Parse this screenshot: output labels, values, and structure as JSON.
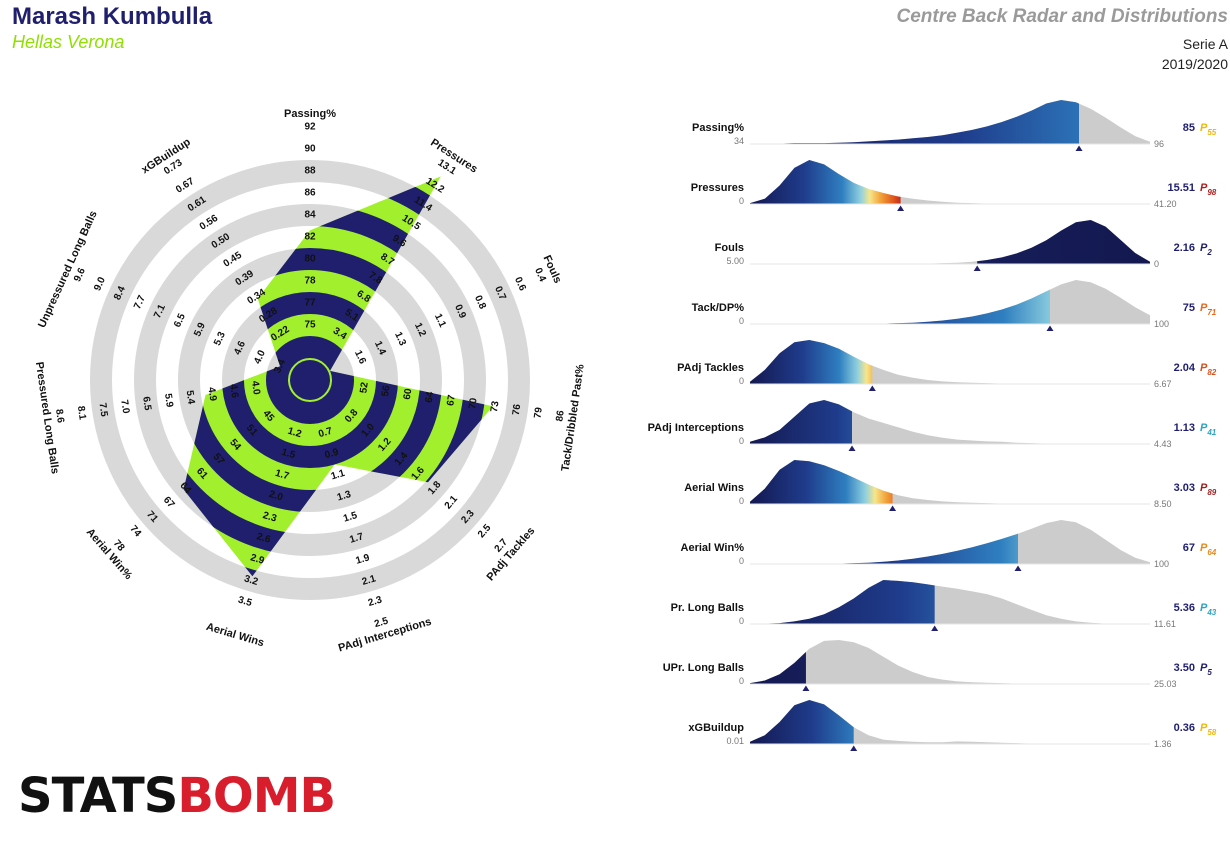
{
  "header": {
    "player": "Marash Kumbulla",
    "team": "Hellas Verona",
    "title": "Centre Back Radar and Distributions",
    "league": "Serie A",
    "season": "2019/2020"
  },
  "logo": {
    "text_a": "STATS",
    "text_b": "BOMB"
  },
  "colors": {
    "radar_fill": "#a2ef2e",
    "radar_band": "#1f1f6e",
    "ring": "#d9d9d9",
    "dist_grey": "#cccccc",
    "marker": "#1f1f6e"
  },
  "chart_data": [
    {
      "type": "radar",
      "axes": [
        {
          "label": "Passing%",
          "ticks": [
            "75",
            "77",
            "78",
            "80",
            "82",
            "84",
            "86",
            "88",
            "90",
            "92"
          ],
          "value": 85,
          "fraction": 0.58
        },
        {
          "label": "Pressures",
          "ticks": [
            "3.4",
            "5.1",
            "6.8",
            "7.8",
            "8.7",
            "9.6",
            "10.5",
            "11.4",
            "12.2",
            "13.1"
          ],
          "value": 15.51,
          "fraction": 1.0
        },
        {
          "label": "Fouls",
          "ticks": [
            "1.6",
            "1.4",
            "1.3",
            "1.2",
            "1.1",
            "0.9",
            "0.8",
            "0.7",
            "0.6",
            "0.4"
          ],
          "value": 2.16,
          "fraction": 0.0
        },
        {
          "label": "Tack/Dribbled Past%",
          "ticks": [
            "52",
            "56",
            "60",
            "64",
            "67",
            "70",
            "73",
            "76",
            "79",
            "86"
          ],
          "value": 75,
          "fraction": 0.74
        },
        {
          "label": "PAdj Tackles",
          "ticks": [
            "0.8",
            "1.0",
            "1.2",
            "1.4",
            "1.6",
            "1.8",
            "2.1",
            "2.3",
            "2.5",
            "2.7"
          ],
          "value": 2.04,
          "fraction": 0.61
        },
        {
          "label": "PAdj Interceptions",
          "ticks": [
            "0.7",
            "0.9",
            "1.1",
            "1.3",
            "1.5",
            "1.7",
            "1.9",
            "2.1",
            "2.3",
            "2.5"
          ],
          "value": 1.13,
          "fraction": 0.3
        },
        {
          "label": "Aerial Wins",
          "ticks": [
            "1.2",
            "1.5",
            "1.7",
            "2.0",
            "2.3",
            "2.6",
            "2.9",
            "3.2",
            "3.5"
          ],
          "value": 3.03,
          "fraction": 0.83
        },
        {
          "label": "Aerial Win%",
          "ticks": [
            "45",
            "51",
            "54",
            "57",
            "61",
            "64",
            "67",
            "71",
            "74",
            "78"
          ],
          "value": 67,
          "fraction": 0.66
        },
        {
          "label": "Pressured Long Balls",
          "ticks": [
            "4.0",
            "4.6",
            "4.9",
            "5.4",
            "5.9",
            "6.5",
            "7.0",
            "7.5",
            "8.1",
            "8.6"
          ],
          "value": 5.36,
          "fraction": 0.38
        },
        {
          "label": "Unpressured Long Balls",
          "ticks": [
            "3.4",
            "4.0",
            "4.6",
            "5.3",
            "5.9",
            "6.5",
            "7.1",
            "7.7",
            "8.4",
            "9.0",
            "9.6"
          ],
          "value": 3.5,
          "fraction": 0.05
        },
        {
          "label": "xGBuildup",
          "ticks": [
            "0.22",
            "0.28",
            "0.34",
            "0.39",
            "0.45",
            "0.50",
            "0.56",
            "0.61",
            "0.67",
            "0.73"
          ],
          "value": 0.36,
          "fraction": 0.34
        }
      ]
    },
    {
      "type": "area",
      "rows": [
        {
          "label": "Passing%",
          "min": "34",
          "max": "96",
          "value": "85",
          "pct": 55,
          "pct_color": "#f2b705",
          "x0": 34,
          "x1": 96,
          "v": 85,
          "rev": false,
          "curve": [
            0.01,
            0.01,
            0.01,
            0.02,
            0.02,
            0.02,
            0.03,
            0.04,
            0.06,
            0.08,
            0.1,
            0.13,
            0.16,
            0.2,
            0.26,
            0.32,
            0.4,
            0.5,
            0.62,
            0.76,
            0.92,
            1.0,
            0.95,
            0.8,
            0.6,
            0.38,
            0.18,
            0.05
          ]
        },
        {
          "label": "Pressures",
          "min": "0",
          "max": "41.20",
          "value": "15.51",
          "pct": 98,
          "pct_color": "#b31b1b",
          "x0": 0,
          "x1": 41.2,
          "v": 15.51,
          "rev": false,
          "curve": [
            0.02,
            0.12,
            0.42,
            0.82,
            1.0,
            0.9,
            0.68,
            0.48,
            0.34,
            0.25,
            0.17,
            0.12,
            0.08,
            0.05,
            0.03,
            0.02,
            0.01,
            0.01,
            0.0,
            0.0,
            0.0,
            0.0,
            0.0,
            0.0,
            0.0,
            0.0,
            0.0,
            0.0
          ]
        },
        {
          "label": "Fouls",
          "min": "5.00",
          "max": "0",
          "value": "2.16",
          "pct": 2,
          "pct_color": "#1f1f6e",
          "x0": 5.0,
          "x1": 0,
          "v": 2.16,
          "rev": true,
          "curve": [
            0.0,
            0.0,
            0.0,
            0.0,
            0.0,
            0.0,
            0.0,
            0.0,
            0.0,
            0.0,
            0.01,
            0.01,
            0.01,
            0.02,
            0.03,
            0.05,
            0.09,
            0.15,
            0.24,
            0.37,
            0.54,
            0.76,
            0.95,
            1.0,
            0.85,
            0.55,
            0.25,
            0.05
          ]
        },
        {
          "label": "Tack/DP%",
          "min": "0",
          "max": "100",
          "value": "75",
          "pct": 71,
          "pct_color": "#e8681a",
          "x0": 0,
          "x1": 100,
          "v": 75,
          "rev": false,
          "curve": [
            0.0,
            0.0,
            0.0,
            0.0,
            0.0,
            0.0,
            0.0,
            0.0,
            0.01,
            0.01,
            0.02,
            0.03,
            0.05,
            0.08,
            0.12,
            0.17,
            0.24,
            0.33,
            0.44,
            0.58,
            0.74,
            0.9,
            1.0,
            0.95,
            0.8,
            0.6,
            0.38,
            0.2
          ]
        },
        {
          "label": "PAdj Tackles",
          "min": "0",
          "max": "6.67",
          "value": "2.04",
          "pct": 82,
          "pct_color": "#d4501c",
          "x0": 0,
          "x1": 6.67,
          "v": 2.04,
          "rev": false,
          "curve": [
            0.05,
            0.32,
            0.7,
            0.95,
            1.0,
            0.93,
            0.8,
            0.62,
            0.45,
            0.32,
            0.21,
            0.14,
            0.09,
            0.06,
            0.04,
            0.03,
            0.02,
            0.01,
            0.01,
            0.01,
            0.0,
            0.0,
            0.0,
            0.0,
            0.0,
            0.0,
            0.0,
            0.0
          ]
        },
        {
          "label": "PAdj Interceptions",
          "min": "0",
          "max": "4.43",
          "value": "1.13",
          "pct": 41,
          "pct_color": "#2aa3c7",
          "x0": 0,
          "x1": 4.43,
          "v": 1.13,
          "rev": false,
          "curve": [
            0.05,
            0.15,
            0.32,
            0.62,
            0.92,
            1.0,
            0.9,
            0.72,
            0.58,
            0.48,
            0.38,
            0.28,
            0.2,
            0.14,
            0.1,
            0.08,
            0.06,
            0.05,
            0.03,
            0.02,
            0.01,
            0.01,
            0.0,
            0.0,
            0.0,
            0.0,
            0.0,
            0.0
          ]
        },
        {
          "label": "Aerial Wins",
          "min": "0",
          "max": "8.50",
          "value": "3.03",
          "pct": 89,
          "pct_color": "#9e1d1d",
          "x0": 0,
          "x1": 8.5,
          "v": 3.03,
          "rev": false,
          "curve": [
            0.05,
            0.35,
            0.78,
            1.0,
            0.97,
            0.88,
            0.75,
            0.6,
            0.44,
            0.3,
            0.2,
            0.13,
            0.09,
            0.06,
            0.04,
            0.03,
            0.02,
            0.01,
            0.01,
            0.0,
            0.0,
            0.0,
            0.0,
            0.0,
            0.0,
            0.0,
            0.0,
            0.0
          ]
        },
        {
          "label": "Aerial Win%",
          "min": "0",
          "max": "100",
          "value": "67",
          "pct": 64,
          "pct_color": "#e8891a",
          "x0": 0,
          "x1": 100,
          "v": 67,
          "rev": false,
          "curve": [
            0.0,
            0.0,
            0.0,
            0.0,
            0.0,
            0.01,
            0.01,
            0.02,
            0.03,
            0.05,
            0.08,
            0.12,
            0.17,
            0.23,
            0.3,
            0.38,
            0.47,
            0.57,
            0.68,
            0.8,
            0.93,
            1.0,
            0.95,
            0.78,
            0.55,
            0.32,
            0.14,
            0.04
          ]
        },
        {
          "label": "Pr. Long Balls",
          "min": "0",
          "max": "11.61",
          "value": "5.36",
          "pct": 43,
          "pct_color": "#2aa3c7",
          "x0": 0,
          "x1": 11.61,
          "v": 5.36,
          "rev": false,
          "curve": [
            0.0,
            0.01,
            0.02,
            0.06,
            0.12,
            0.22,
            0.38,
            0.58,
            0.82,
            1.0,
            0.98,
            0.95,
            0.9,
            0.85,
            0.8,
            0.74,
            0.68,
            0.58,
            0.45,
            0.32,
            0.2,
            0.12,
            0.06,
            0.03,
            0.01,
            0.0,
            0.0,
            0.0
          ]
        },
        {
          "label": "UPr. Long Balls",
          "min": "0",
          "max": "25.03",
          "value": "3.50",
          "pct": 5,
          "pct_color": "#1f1f6e",
          "x0": 0,
          "x1": 25.03,
          "v": 3.5,
          "rev": false,
          "curve": [
            0.02,
            0.08,
            0.22,
            0.48,
            0.8,
            0.98,
            1.0,
            0.95,
            0.82,
            0.62,
            0.42,
            0.27,
            0.16,
            0.1,
            0.06,
            0.04,
            0.03,
            0.02,
            0.01,
            0.0,
            0.0,
            0.0,
            0.0,
            0.0,
            0.0,
            0.0,
            0.0,
            0.0
          ]
        },
        {
          "label": "xGBuildup",
          "min": "0.01",
          "max": "1.36",
          "value": "0.36",
          "pct": 58,
          "pct_color": "#f2b705",
          "x0": 0.01,
          "x1": 1.36,
          "v": 0.36,
          "rev": false,
          "curve": [
            0.05,
            0.2,
            0.5,
            0.88,
            1.0,
            0.9,
            0.65,
            0.38,
            0.2,
            0.1,
            0.07,
            0.05,
            0.04,
            0.04,
            0.06,
            0.05,
            0.04,
            0.03,
            0.02,
            0.01,
            0.01,
            0.0,
            0.0,
            0.0,
            0.0,
            0.0,
            0.0,
            0.0
          ]
        }
      ]
    }
  ]
}
